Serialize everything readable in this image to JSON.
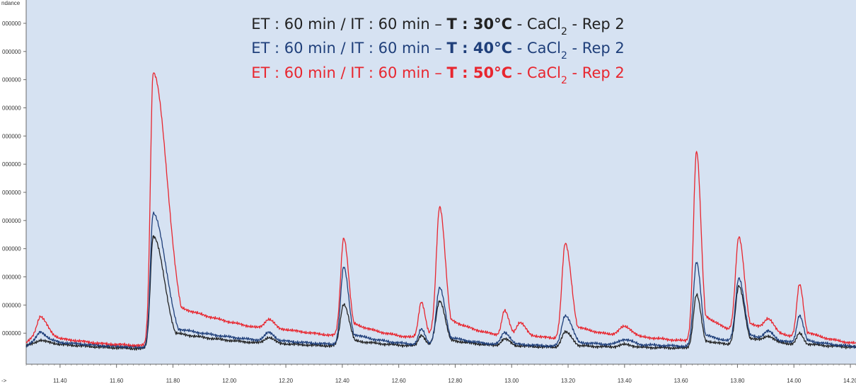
{
  "chart_data": {
    "type": "line",
    "title": "",
    "xlabel": "",
    "ylabel": "ndance",
    "x_axis_unit_label": "->",
    "xlim": [
      11.28,
      14.22
    ],
    "ylim": [
      0,
      12.2
    ],
    "x_ticks": [
      "11.40",
      "11.60",
      "11.80",
      "12.00",
      "12.20",
      "12.40",
      "12.60",
      "12.80",
      "13.00",
      "13.20",
      "13.40",
      "13.60",
      "13.80",
      "14.00",
      "14.20"
    ],
    "y_ticks": [
      {
        "value": 1,
        "label": "000000"
      },
      {
        "value": 2,
        "label": "000000"
      },
      {
        "value": 3,
        "label": "000000"
      },
      {
        "value": 4,
        "label": "000000"
      },
      {
        "value": 5,
        "label": "000000"
      },
      {
        "value": 6,
        "label": "000000"
      },
      {
        "value": 7,
        "label": "000000"
      },
      {
        "value": 8,
        "label": "000000"
      },
      {
        "value": 9,
        "label": "000000"
      },
      {
        "value": 10,
        "label": "000000"
      },
      {
        "value": 11,
        "label": "000000"
      },
      {
        "value": 12,
        "label": "000000"
      }
    ],
    "grid": false,
    "legend_position": "top-center",
    "series": [
      {
        "name": "ET : 60 min / IT : 60 min – T : 30°C - CaCl2 - Rep 2",
        "legend": {
          "pre": "ET : 60 min / IT : 60 min – ",
          "bold": "T : 30°C",
          "mid": " - CaCl",
          "sub": "2",
          "post": " - Rep 2"
        },
        "color": "#222222",
        "baseline": [
          [
            11.28,
            0.0
          ],
          [
            11.33,
            0.2
          ],
          [
            11.4,
            0.05
          ],
          [
            11.55,
            -0.05
          ],
          [
            11.68,
            -0.1
          ],
          [
            12.1,
            -0.12
          ],
          [
            12.2,
            -0.12
          ],
          [
            12.6,
            -0.1
          ],
          [
            13.0,
            -0.1
          ],
          [
            13.5,
            -0.1
          ],
          [
            14.22,
            -0.1
          ]
        ],
        "peaks": [
          {
            "rt": 11.33,
            "height": 0.0,
            "wl": 0.02,
            "wr": 0.02
          },
          {
            "rt": 11.73,
            "height": 4.0,
            "wl": 0.01,
            "wr": 0.04
          },
          {
            "rt": 12.14,
            "height": 0.22,
            "wl": 0.015,
            "wr": 0.02
          },
          {
            "rt": 12.405,
            "height": 1.5,
            "wl": 0.012,
            "wr": 0.02
          },
          {
            "rt": 12.68,
            "height": 0.4,
            "wl": 0.01,
            "wr": 0.014
          },
          {
            "rt": 12.745,
            "height": 1.6,
            "wl": 0.013,
            "wr": 0.02
          },
          {
            "rt": 12.975,
            "height": 0.25,
            "wl": 0.012,
            "wr": 0.02
          },
          {
            "rt": 13.19,
            "height": 0.55,
            "wl": 0.013,
            "wr": 0.025
          },
          {
            "rt": 13.4,
            "height": 0.1,
            "wl": 0.02,
            "wr": 0.03
          },
          {
            "rt": 13.655,
            "height": 1.9,
            "wl": 0.011,
            "wr": 0.016
          },
          {
            "rt": 13.805,
            "height": 2.1,
            "wl": 0.012,
            "wr": 0.02
          },
          {
            "rt": 13.91,
            "height": 0.2,
            "wl": 0.015,
            "wr": 0.02
          },
          {
            "rt": 14.02,
            "height": 0.4,
            "wl": 0.01,
            "wr": 0.014
          }
        ]
      },
      {
        "name": "ET : 60 min / IT : 60 min – T : 40°C - CaCl2 - Rep 2",
        "legend": {
          "pre": "ET : 60 min / IT : 60 min – ",
          "bold": "T : 40°C",
          "mid": " - CaCl",
          "sub": "2",
          "post": " - Rep 2"
        },
        "color": "#1f3f7a",
        "baseline": [
          [
            11.28,
            0.0
          ],
          [
            11.33,
            0.3
          ],
          [
            11.4,
            0.1
          ],
          [
            11.55,
            0.0
          ],
          [
            11.68,
            -0.05
          ],
          [
            12.1,
            -0.1
          ],
          [
            12.2,
            -0.1
          ],
          [
            12.6,
            -0.1
          ],
          [
            13.0,
            -0.1
          ],
          [
            13.5,
            -0.05
          ],
          [
            14.22,
            -0.1
          ]
        ],
        "peaks": [
          {
            "rt": 11.33,
            "height": 0.2,
            "wl": 0.012,
            "wr": 0.02
          },
          {
            "rt": 11.73,
            "height": 4.75,
            "wl": 0.01,
            "wr": 0.045
          },
          {
            "rt": 12.14,
            "height": 0.3,
            "wl": 0.015,
            "wr": 0.02
          },
          {
            "rt": 12.405,
            "height": 2.75,
            "wl": 0.011,
            "wr": 0.018
          },
          {
            "rt": 12.68,
            "height": 0.55,
            "wl": 0.01,
            "wr": 0.014
          },
          {
            "rt": 12.745,
            "height": 2.0,
            "wl": 0.012,
            "wr": 0.02
          },
          {
            "rt": 12.975,
            "height": 0.45,
            "wl": 0.012,
            "wr": 0.02
          },
          {
            "rt": 13.19,
            "height": 1.1,
            "wl": 0.013,
            "wr": 0.025
          },
          {
            "rt": 13.4,
            "height": 0.2,
            "wl": 0.02,
            "wr": 0.03
          },
          {
            "rt": 13.655,
            "height": 3.0,
            "wl": 0.011,
            "wr": 0.016
          },
          {
            "rt": 13.805,
            "height": 2.3,
            "wl": 0.012,
            "wr": 0.02
          },
          {
            "rt": 13.91,
            "height": 0.3,
            "wl": 0.015,
            "wr": 0.02
          },
          {
            "rt": 14.02,
            "height": 1.0,
            "wl": 0.01,
            "wr": 0.014
          }
        ]
      },
      {
        "name": "ET : 60 min / IT : 60 min – T : 50°C - CaCl2 - Rep 2",
        "legend": {
          "pre": "ET : 60 min / IT : 60 min – ",
          "bold": "T : 50°C",
          "mid": " - CaCl",
          "sub": "2",
          "post": " - Rep 2"
        },
        "color": "#e8262f",
        "baseline": [
          [
            11.28,
            0.1
          ],
          [
            11.33,
            0.6
          ],
          [
            11.4,
            0.2
          ],
          [
            11.55,
            0.05
          ],
          [
            11.68,
            0.0
          ],
          [
            12.1,
            -0.05
          ],
          [
            12.2,
            0.0
          ],
          [
            12.6,
            0.0
          ],
          [
            13.0,
            0.05
          ],
          [
            13.5,
            0.1
          ],
          [
            14.22,
            -0.05
          ]
        ],
        "peaks": [
          {
            "rt": 11.33,
            "height": 0.45,
            "wl": 0.012,
            "wr": 0.025
          },
          {
            "rt": 11.73,
            "height": 9.7,
            "wl": 0.01,
            "wr": 0.05
          },
          {
            "rt": 12.14,
            "height": 0.35,
            "wl": 0.015,
            "wr": 0.02
          },
          {
            "rt": 12.405,
            "height": 3.5,
            "wl": 0.011,
            "wr": 0.018
          },
          {
            "rt": 12.68,
            "height": 1.3,
            "wl": 0.01,
            "wr": 0.014
          },
          {
            "rt": 12.745,
            "height": 4.6,
            "wl": 0.012,
            "wr": 0.02
          },
          {
            "rt": 12.975,
            "height": 0.9,
            "wl": 0.01,
            "wr": 0.016
          },
          {
            "rt": 13.03,
            "height": 0.45,
            "wl": 0.012,
            "wr": 0.02
          },
          {
            "rt": 13.19,
            "height": 3.4,
            "wl": 0.012,
            "wr": 0.022
          },
          {
            "rt": 13.4,
            "height": 0.35,
            "wl": 0.02,
            "wr": 0.03
          },
          {
            "rt": 13.655,
            "height": 6.75,
            "wl": 0.011,
            "wr": 0.016
          },
          {
            "rt": 13.805,
            "height": 3.4,
            "wl": 0.012,
            "wr": 0.02
          },
          {
            "rt": 13.91,
            "height": 0.45,
            "wl": 0.015,
            "wr": 0.02
          },
          {
            "rt": 14.02,
            "height": 1.9,
            "wl": 0.01,
            "wr": 0.014
          }
        ]
      }
    ]
  }
}
